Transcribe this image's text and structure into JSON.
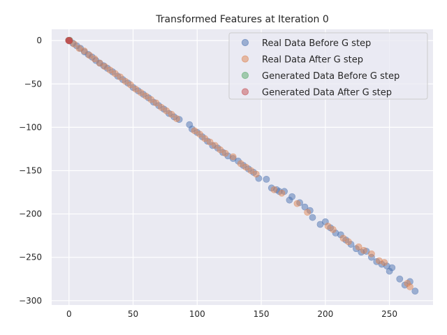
{
  "chart_data": {
    "type": "scatter",
    "title": "Transformed Features at Iteration 0",
    "xlabel": "",
    "ylabel": "",
    "xlim": [
      -13.5,
      284
    ],
    "ylim": [
      -305,
      13
    ],
    "xticks": [
      0,
      50,
      100,
      150,
      200,
      250
    ],
    "yticks": [
      0,
      -50,
      -100,
      -150,
      -200,
      -250,
      -300
    ],
    "grid": true,
    "background": "#eaeaf2",
    "legend_position": "top-right",
    "series": [
      {
        "name": "Real Data Before G step",
        "color": "#4c72b0",
        "points": [
          [
            0,
            0
          ],
          [
            3,
            -3
          ],
          [
            6,
            -6
          ],
          [
            9,
            -9
          ],
          [
            12,
            -13
          ],
          [
            15,
            -16
          ],
          [
            18,
            -19
          ],
          [
            21,
            -23
          ],
          [
            24,
            -26
          ],
          [
            27,
            -29
          ],
          [
            30,
            -32
          ],
          [
            34,
            -36
          ],
          [
            38,
            -41
          ],
          [
            42,
            -45
          ],
          [
            46,
            -49
          ],
          [
            50,
            -54
          ],
          [
            54,
            -58
          ],
          [
            58,
            -62
          ],
          [
            62,
            -66
          ],
          [
            66,
            -71
          ],
          [
            70,
            -75
          ],
          [
            74,
            -79
          ],
          [
            78,
            -84
          ],
          [
            82,
            -88
          ],
          [
            86,
            -91
          ],
          [
            94,
            -97
          ],
          [
            96,
            -102
          ],
          [
            100,
            -106
          ],
          [
            104,
            -111
          ],
          [
            108,
            -116
          ],
          [
            112,
            -121
          ],
          [
            116,
            -124
          ],
          [
            120,
            -129
          ],
          [
            124,
            -133
          ],
          [
            128,
            -136
          ],
          [
            132,
            -139
          ],
          [
            136,
            -144
          ],
          [
            140,
            -148
          ],
          [
            144,
            -152
          ],
          [
            148,
            -159
          ],
          [
            154,
            -160
          ],
          [
            158,
            -170
          ],
          [
            162,
            -172
          ],
          [
            164,
            -174
          ],
          [
            168,
            -174
          ],
          [
            172,
            -184
          ],
          [
            174,
            -180
          ],
          [
            180,
            -187
          ],
          [
            184,
            -192
          ],
          [
            188,
            -196
          ],
          [
            190,
            -204
          ],
          [
            196,
            -212
          ],
          [
            200,
            -209
          ],
          [
            204,
            -216
          ],
          [
            208,
            -222
          ],
          [
            212,
            -224
          ],
          [
            216,
            -230
          ],
          [
            220,
            -235
          ],
          [
            224,
            -240
          ],
          [
            228,
            -244
          ],
          [
            232,
            -243
          ],
          [
            236,
            -250
          ],
          [
            240,
            -255
          ],
          [
            244,
            -258
          ],
          [
            248,
            -260
          ],
          [
            250,
            -266
          ],
          [
            252,
            -262
          ],
          [
            258,
            -275
          ],
          [
            262,
            -282
          ],
          [
            266,
            -278
          ],
          [
            270,
            -289
          ]
        ]
      },
      {
        "name": "Real Data After G step",
        "color": "#dd8452",
        "points": [
          [
            0,
            0
          ],
          [
            4,
            -4
          ],
          [
            8,
            -9
          ],
          [
            12,
            -12
          ],
          [
            16,
            -17
          ],
          [
            20,
            -21
          ],
          [
            24,
            -26
          ],
          [
            28,
            -30
          ],
          [
            32,
            -34
          ],
          [
            36,
            -38
          ],
          [
            40,
            -42
          ],
          [
            44,
            -47
          ],
          [
            48,
            -51
          ],
          [
            52,
            -56
          ],
          [
            56,
            -60
          ],
          [
            60,
            -64
          ],
          [
            64,
            -68
          ],
          [
            68,
            -72
          ],
          [
            72,
            -77
          ],
          [
            76,
            -81
          ],
          [
            80,
            -85
          ],
          [
            84,
            -90
          ],
          [
            98,
            -104
          ],
          [
            102,
            -108
          ],
          [
            106,
            -113
          ],
          [
            110,
            -117
          ],
          [
            114,
            -121
          ],
          [
            118,
            -126
          ],
          [
            122,
            -130
          ],
          [
            128,
            -134
          ],
          [
            134,
            -142
          ],
          [
            138,
            -146
          ],
          [
            142,
            -150
          ],
          [
            146,
            -154
          ],
          [
            160,
            -172
          ],
          [
            166,
            -176
          ],
          [
            178,
            -188
          ],
          [
            186,
            -198
          ],
          [
            202,
            -214
          ],
          [
            206,
            -218
          ],
          [
            214,
            -228
          ],
          [
            218,
            -232
          ],
          [
            226,
            -238
          ],
          [
            230,
            -242
          ],
          [
            236,
            -246
          ],
          [
            242,
            -254
          ],
          [
            246,
            -256
          ],
          [
            264,
            -280
          ],
          [
            266,
            -284
          ]
        ]
      },
      {
        "name": "Generated Data Before G step",
        "color": "#55a868",
        "points": [
          [
            0,
            0
          ],
          [
            0.3,
            -0.2
          ],
          [
            -0.2,
            0.3
          ],
          [
            0.5,
            0.4
          ]
        ]
      },
      {
        "name": "Generated Data After G step",
        "color": "#c44e52",
        "points": [
          [
            0,
            0
          ],
          [
            -0.3,
            0.2
          ],
          [
            0.2,
            -0.4
          ],
          [
            0.4,
            0.1
          ]
        ]
      }
    ]
  }
}
